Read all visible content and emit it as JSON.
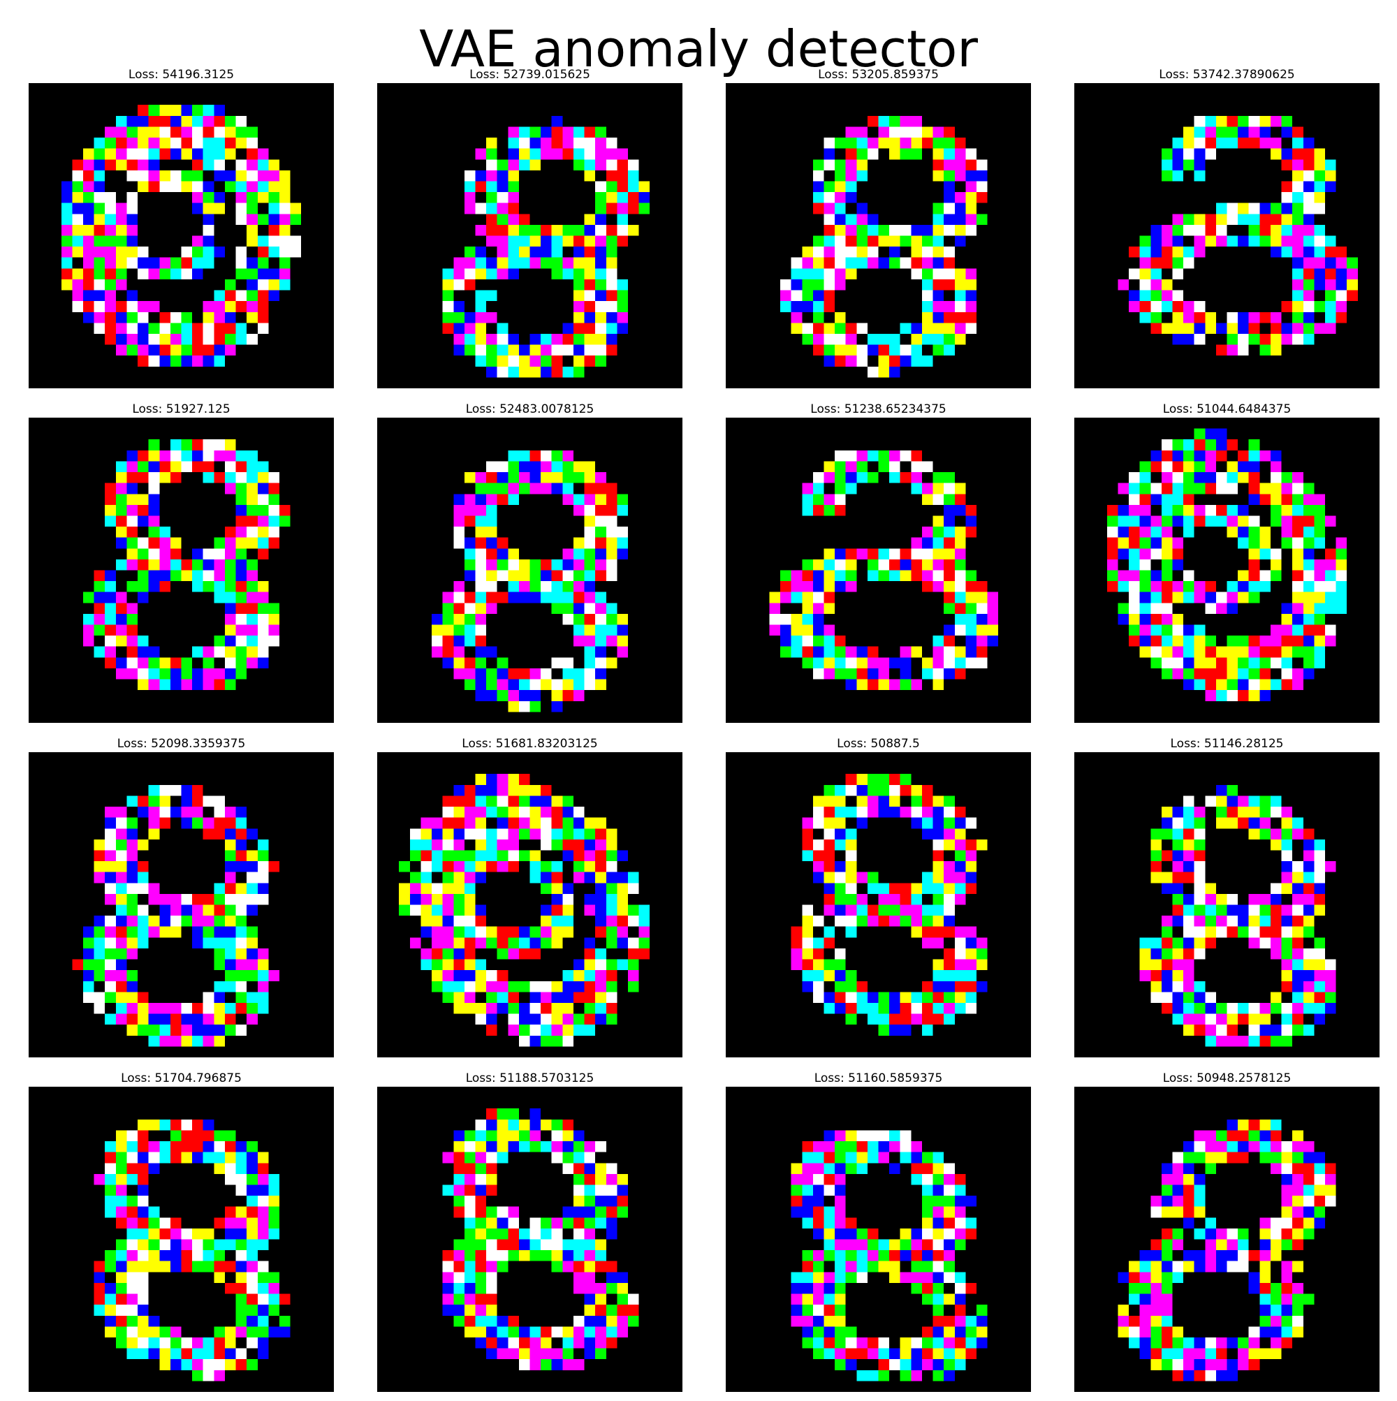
{
  "title": "VAE anomaly detector",
  "palette": {
    "background": "#000000",
    "K": "#000000",
    "R": "#ff0000",
    "G": "#00ff00",
    "B": "#0000ff",
    "C": "#00ffff",
    "M": "#ff00ff",
    "Y": "#ffff00",
    "W": "#ffffff"
  },
  "samples": [
    {
      "loss_label": "Loss: 54196.3125",
      "glyph": "loop"
    },
    {
      "loss_label": "Loss: 52739.015625",
      "glyph": "eight"
    },
    {
      "loss_label": "Loss: 53205.859375",
      "glyph": "eight"
    },
    {
      "loss_label": "Loss: 53742.37890625",
      "glyph": "three"
    },
    {
      "loss_label": "Loss: 51927.125",
      "glyph": "eight"
    },
    {
      "loss_label": "Loss: 52483.0078125",
      "glyph": "eight"
    },
    {
      "loss_label": "Loss: 51238.65234375",
      "glyph": "three"
    },
    {
      "loss_label": "Loss: 51044.6484375",
      "glyph": "loop"
    },
    {
      "loss_label": "Loss: 52098.3359375",
      "glyph": "eight"
    },
    {
      "loss_label": "Loss: 51681.83203125",
      "glyph": "loop"
    },
    {
      "loss_label": "Loss: 50887.5",
      "glyph": "eight"
    },
    {
      "loss_label": "Loss: 51146.28125",
      "glyph": "eight"
    },
    {
      "loss_label": "Loss: 51704.796875",
      "glyph": "eight"
    },
    {
      "loss_label": "Loss: 51188.5703125",
      "glyph": "eight"
    },
    {
      "loss_label": "Loss: 51160.5859375",
      "glyph": "eight"
    },
    {
      "loss_label": "Loss: 50948.2578125",
      "glyph": "eight"
    }
  ]
}
